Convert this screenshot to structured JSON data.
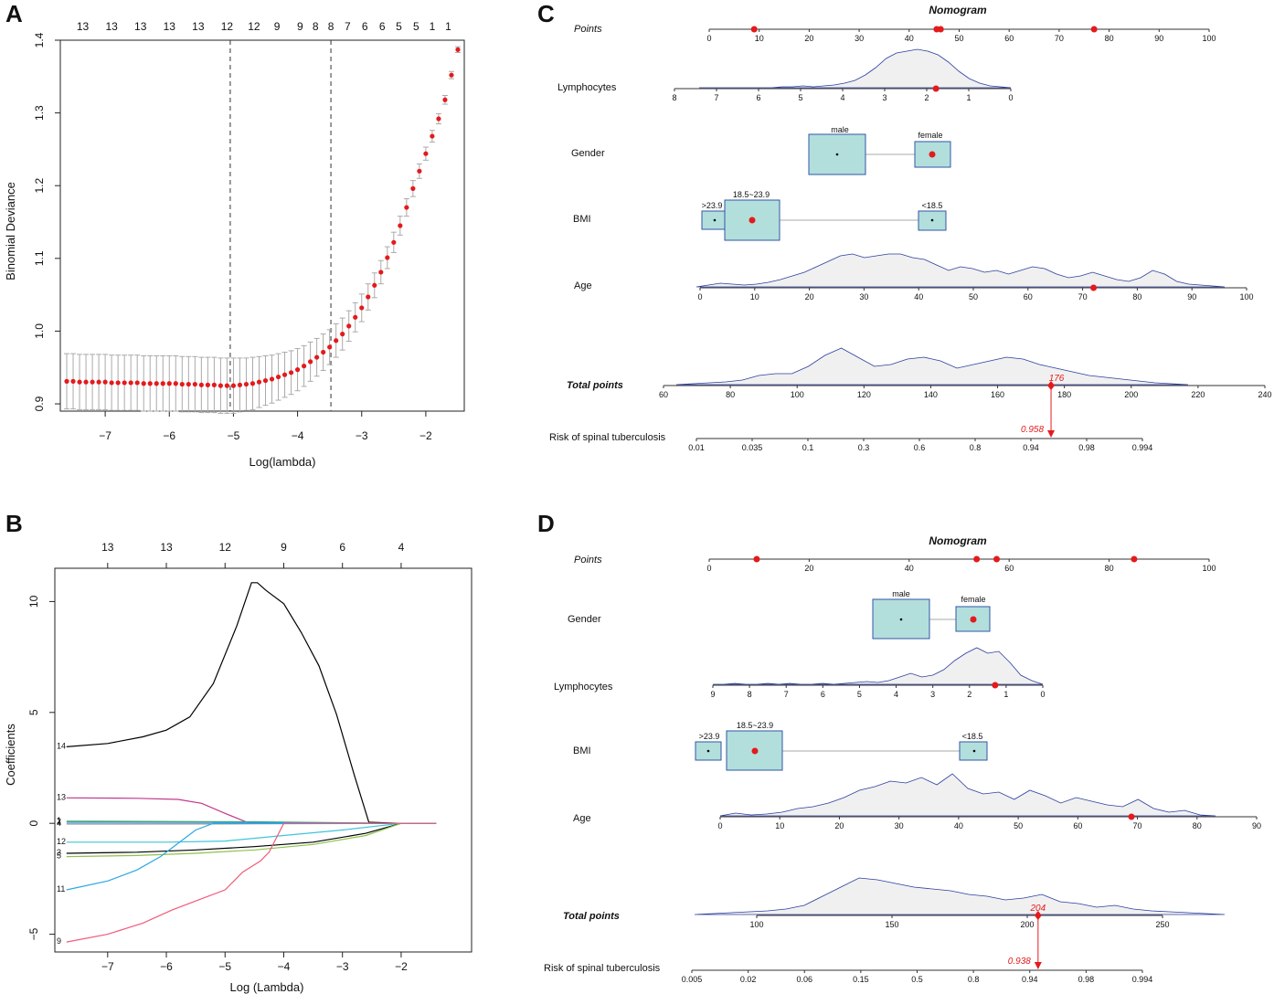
{
  "panels": {
    "a": "A",
    "b": "B",
    "c": "C",
    "d": "D"
  },
  "colors": {
    "red": "#e41a1c",
    "box": "#b2dfdb",
    "boxStroke": "#3355aa",
    "density": "#f0f0f0",
    "densityStroke": "#2c3e9e"
  },
  "chart_data": [
    {
      "id": "A",
      "type": "scatter",
      "title": "",
      "xlabel": "Log(lambda)",
      "ylabel": "Binomial Deviance",
      "xlim": [
        -7.7,
        -1.4
      ],
      "ylim": [
        0.89,
        1.4
      ],
      "xticks": [
        -7,
        -6,
        -5,
        -4,
        -3,
        -2
      ],
      "yticks": [
        0.9,
        1.0,
        1.1,
        1.2,
        1.3,
        1.4
      ],
      "top_counts": [
        "13",
        "13",
        "13",
        "13",
        "13",
        "12",
        "12",
        "9",
        "9",
        "8",
        "8",
        "7",
        "6",
        "6",
        "5",
        "5",
        "1",
        "1"
      ],
      "top_count_x": [
        -7.35,
        -6.9,
        -6.45,
        -6.0,
        -5.55,
        -5.1,
        -4.68,
        -4.32,
        -3.96,
        -3.72,
        -3.48,
        -3.22,
        -2.95,
        -2.68,
        -2.42,
        -2.15,
        -1.9,
        -1.65
      ],
      "lambda_min": -5.05,
      "lambda_1se": -3.48,
      "x": [
        -7.6,
        -7.5,
        -7.4,
        -7.3,
        -7.2,
        -7.1,
        -7.0,
        -6.9,
        -6.8,
        -6.7,
        -6.6,
        -6.5,
        -6.4,
        -6.3,
        -6.2,
        -6.1,
        -6.0,
        -5.9,
        -5.8,
        -5.7,
        -5.6,
        -5.5,
        -5.4,
        -5.3,
        -5.2,
        -5.1,
        -5.0,
        -4.9,
        -4.8,
        -4.7,
        -4.6,
        -4.5,
        -4.4,
        -4.3,
        -4.2,
        -4.1,
        -4.0,
        -3.9,
        -3.8,
        -3.7,
        -3.6,
        -3.5,
        -3.4,
        -3.3,
        -3.2,
        -3.1,
        -3.0,
        -2.9,
        -2.8,
        -2.7,
        -2.6,
        -2.5,
        -2.4,
        -2.3,
        -2.2,
        -2.1,
        -2.0,
        -1.9,
        -1.8,
        -1.7,
        -1.6,
        -1.5
      ],
      "y": [
        0.931,
        0.931,
        0.93,
        0.93,
        0.93,
        0.93,
        0.93,
        0.929,
        0.929,
        0.929,
        0.929,
        0.929,
        0.928,
        0.928,
        0.928,
        0.928,
        0.928,
        0.928,
        0.927,
        0.927,
        0.927,
        0.926,
        0.926,
        0.926,
        0.925,
        0.925,
        0.925,
        0.926,
        0.927,
        0.928,
        0.93,
        0.932,
        0.934,
        0.937,
        0.94,
        0.943,
        0.947,
        0.952,
        0.958,
        0.964,
        0.971,
        0.978,
        0.987,
        0.996,
        1.007,
        1.019,
        1.032,
        1.047,
        1.063,
        1.081,
        1.101,
        1.122,
        1.145,
        1.17,
        1.196,
        1.22,
        1.244,
        1.268,
        1.292,
        1.318,
        1.352,
        1.387
      ],
      "yerr": [
        0.038,
        0.038,
        0.038,
        0.038,
        0.038,
        0.038,
        0.038,
        0.038,
        0.038,
        0.038,
        0.038,
        0.038,
        0.038,
        0.038,
        0.038,
        0.038,
        0.038,
        0.038,
        0.038,
        0.038,
        0.038,
        0.038,
        0.038,
        0.038,
        0.038,
        0.038,
        0.038,
        0.037,
        0.036,
        0.036,
        0.035,
        0.034,
        0.033,
        0.032,
        0.031,
        0.03,
        0.029,
        0.028,
        0.027,
        0.026,
        0.025,
        0.024,
        0.023,
        0.022,
        0.021,
        0.02,
        0.019,
        0.018,
        0.017,
        0.016,
        0.015,
        0.014,
        0.013,
        0.012,
        0.011,
        0.01,
        0.009,
        0.008,
        0.007,
        0.006,
        0.005,
        0.004
      ]
    },
    {
      "id": "B",
      "type": "line",
      "title": "",
      "xlabel": "Log (Lambda)",
      "ylabel": "Coefficients",
      "xlim": [
        -7.9,
        -0.8
      ],
      "ylim": [
        -5.8,
        11.5
      ],
      "xticks": [
        -7,
        -6,
        -5,
        -4,
        -3,
        -2
      ],
      "yticks": [
        -5,
        0,
        5,
        10
      ],
      "top_counts": [
        "13",
        "13",
        "12",
        "9",
        "6",
        "4"
      ],
      "top_count_x": [
        -7.0,
        -6.0,
        -5.0,
        -4.0,
        -3.0,
        -2.0
      ],
      "series": [
        {
          "name": "14",
          "color": "#000000",
          "x": [
            -7.7,
            -7.0,
            -6.4,
            -6.0,
            -5.6,
            -5.2,
            -4.8,
            -4.55,
            -4.45,
            -4.3,
            -4.0,
            -3.7,
            -3.4,
            -3.1,
            -2.8,
            -2.55,
            -2.0,
            -1.4
          ],
          "values": [
            3.45,
            3.6,
            3.9,
            4.2,
            4.8,
            6.3,
            8.9,
            10.85,
            10.85,
            10.5,
            9.9,
            8.6,
            7.1,
            4.9,
            2.2,
            0.05,
            0.0,
            0.0
          ]
        },
        {
          "name": "13",
          "color": "#c2378e",
          "x": [
            -7.7,
            -6.5,
            -5.8,
            -5.4,
            -5.0,
            -4.6,
            -2.0,
            -1.4
          ],
          "values": [
            1.15,
            1.13,
            1.08,
            0.9,
            0.45,
            0.02,
            0.0,
            0.0
          ]
        },
        {
          "name": "1",
          "color": "#4caf50",
          "x": [
            -7.7,
            -4.5,
            -2.0,
            -1.4
          ],
          "values": [
            0.1,
            0.07,
            0.0,
            0.0
          ]
        },
        {
          "name": "2",
          "color": "#2196f3",
          "x": [
            -7.7,
            -4.5,
            -2.0,
            -1.4
          ],
          "values": [
            0.05,
            0.04,
            0.0,
            0.0
          ]
        },
        {
          "name": "4",
          "color": "#888888",
          "x": [
            -7.7,
            -4.5,
            -2.0,
            -1.4
          ],
          "values": [
            -0.03,
            -0.02,
            0.0,
            0.0
          ]
        },
        {
          "name": "12",
          "color": "#40c4d8",
          "x": [
            -7.7,
            -6.0,
            -5.0,
            -4.0,
            -3.0,
            -2.0,
            -1.4
          ],
          "values": [
            -0.85,
            -0.85,
            -0.8,
            -0.55,
            -0.3,
            0.0,
            0.0
          ]
        },
        {
          "name": "3",
          "color": "#000000",
          "x": [
            -7.7,
            -6.5,
            -5.5,
            -4.5,
            -3.5,
            -2.6,
            -2.0,
            -1.4
          ],
          "values": [
            -1.35,
            -1.3,
            -1.2,
            -1.05,
            -0.85,
            -0.45,
            0.0,
            0.0
          ]
        },
        {
          "name": "5",
          "color": "#8bc34a",
          "x": [
            -7.7,
            -6.5,
            -5.5,
            -4.5,
            -3.5,
            -2.6,
            -2.0,
            -1.4
          ],
          "values": [
            -1.5,
            -1.45,
            -1.35,
            -1.2,
            -0.95,
            -0.55,
            0.0,
            0.0
          ]
        },
        {
          "name": "11",
          "color": "#2aa8e0",
          "x": [
            -7.7,
            -7.0,
            -6.5,
            -6.1,
            -5.8,
            -5.5,
            -5.2,
            -1.4
          ],
          "values": [
            -3.0,
            -2.6,
            -2.1,
            -1.5,
            -0.9,
            -0.3,
            0.0,
            0.0
          ]
        },
        {
          "name": "9",
          "color": "#ef5b7a",
          "x": [
            -7.7,
            -7.0,
            -6.4,
            -5.9,
            -5.5,
            -5.0,
            -4.7,
            -4.4,
            -4.25,
            -4.0,
            -2.0,
            -1.4
          ],
          "values": [
            -5.35,
            -5.0,
            -4.5,
            -3.9,
            -3.5,
            -3.0,
            -2.2,
            -1.7,
            -1.3,
            0.0,
            0.0,
            0.0
          ]
        }
      ]
    },
    {
      "id": "C",
      "type": "nomogram",
      "title": "Nomogram",
      "points_label": "Points",
      "points_ticks": [
        "0",
        "10",
        "20",
        "30",
        "40",
        "50",
        "60",
        "70",
        "80",
        "90",
        "100"
      ],
      "points_markers": [
        9,
        45.5,
        46.3,
        77
      ],
      "lymph_label": "Lymphocytes",
      "lymph_ticks": [
        "8",
        "7",
        "6",
        "5",
        "4",
        "3",
        "2",
        "1",
        "0"
      ],
      "lymph_marker": 1.78,
      "gender_label": "Gender",
      "gender_levels": [
        "male",
        "female"
      ],
      "bmi_label": "BMI",
      "bmi_levels": [
        ">23.9",
        "18.5~23.9",
        "<18.5"
      ],
      "age_label": "Age",
      "age_ticks": [
        "0",
        "10",
        "20",
        "30",
        "40",
        "50",
        "60",
        "70",
        "80",
        "90",
        "100"
      ],
      "age_marker": 72,
      "total_label": "Total points",
      "total_ticks": [
        "60",
        "80",
        "100",
        "120",
        "140",
        "160",
        "180",
        "200",
        "220",
        "240"
      ],
      "total_value": "176",
      "risk_label": "Risk of spinal tuberculosis",
      "risk_ticks": [
        "0.01",
        "0.035",
        "0.1",
        "0.3",
        "0.6",
        "0.8",
        "0.94",
        "0.98",
        "0.994"
      ],
      "risk_value": "0.958"
    },
    {
      "id": "D",
      "type": "nomogram",
      "title": "Nomogram",
      "points_label": "Points",
      "points_ticks": [
        "0",
        "20",
        "40",
        "60",
        "80",
        "100"
      ],
      "points_markers": [
        9.5,
        53.5,
        57.5,
        85
      ],
      "gender_label": "Gender",
      "gender_levels": [
        "male",
        "female"
      ],
      "lymph_label": "Lymphocytes",
      "lymph_ticks": [
        "9",
        "8",
        "7",
        "6",
        "5",
        "4",
        "3",
        "2",
        "1",
        "0"
      ],
      "lymph_marker": 1.3,
      "bmi_label": "BMI",
      "bmi_levels": [
        ">23.9",
        "18.5~23.9",
        "<18.5"
      ],
      "age_label": "Age",
      "age_ticks": [
        "0",
        "10",
        "20",
        "30",
        "40",
        "50",
        "60",
        "70",
        "80",
        "90"
      ],
      "age_marker": 69,
      "total_label": "Total points",
      "total_ticks": [
        "100",
        "150",
        "200",
        "250"
      ],
      "total_value": "204",
      "risk_label": "Risk of spinal tuberculosis",
      "risk_ticks": [
        "0.005",
        "0.02",
        "0.06",
        "0.15",
        "0.5",
        "0.8",
        "0.94",
        "0.98",
        "0.994"
      ],
      "risk_value": "0.938"
    }
  ]
}
